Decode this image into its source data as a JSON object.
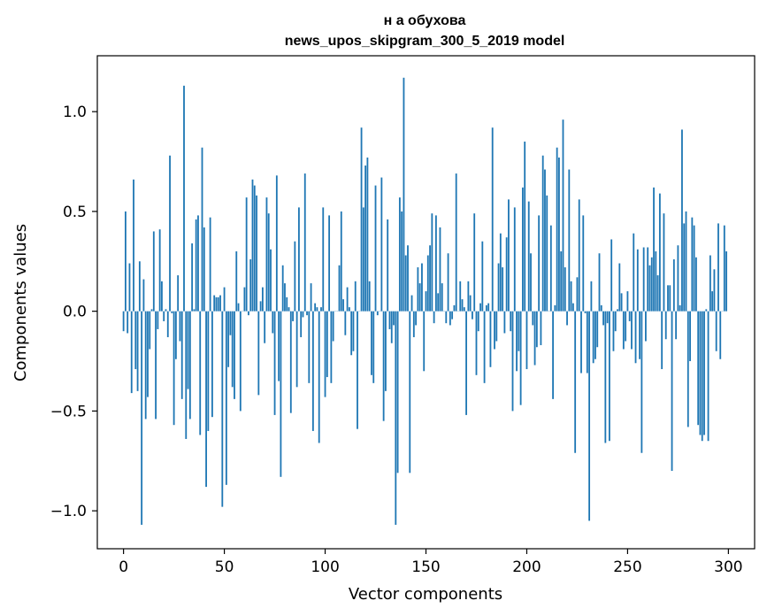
{
  "chart_data": {
    "type": "bar",
    "title": "н а обухова",
    "subtitle": "news_upos_skipgram_300_5_2019 model",
    "xlabel": "Vector components",
    "ylabel": "Components values",
    "xlim": [
      -13,
      313
    ],
    "ylim": [
      -1.19,
      1.28
    ],
    "xticks": [
      0,
      50,
      100,
      150,
      200,
      250,
      300
    ],
    "yticks": [
      -1.0,
      -0.5,
      0.0,
      0.5,
      1.0
    ],
    "ytick_labels": [
      "−1.0",
      "−0.5",
      "0.0",
      "0.5",
      "1.0"
    ],
    "xtick_labels": [
      "0",
      "50",
      "100",
      "150",
      "200",
      "250",
      "300"
    ],
    "bar_color": "#1f77b4",
    "grid": false,
    "x": "component index 0..299",
    "values": [
      -0.1,
      0.5,
      -0.11,
      0.24,
      -0.41,
      0.66,
      -0.29,
      -0.4,
      0.25,
      -1.07,
      0.16,
      -0.54,
      -0.43,
      -0.19,
      0.01,
      0.4,
      -0.54,
      -0.09,
      0.41,
      0.15,
      -0.05,
      0.01,
      -0.13,
      0.78,
      -0.01,
      -0.57,
      -0.24,
      0.18,
      -0.15,
      -0.44,
      1.13,
      -0.64,
      -0.39,
      -0.54,
      0.34,
      0.01,
      0.46,
      0.48,
      -0.62,
      0.82,
      0.42,
      -0.88,
      -0.6,
      0.47,
      -0.53,
      0.08,
      0.07,
      0.07,
      0.08,
      -0.98,
      0.12,
      -0.87,
      -0.28,
      -0.12,
      -0.38,
      -0.44,
      0.3,
      0.04,
      -0.5,
      0.0,
      0.12,
      0.57,
      -0.02,
      0.26,
      0.66,
      0.63,
      0.58,
      -0.42,
      0.05,
      0.12,
      -0.16,
      0.57,
      0.49,
      0.31,
      -0.11,
      -0.52,
      0.68,
      -0.35,
      -0.83,
      0.23,
      0.14,
      0.07,
      0.02,
      -0.51,
      -0.05,
      0.35,
      -0.38,
      0.52,
      -0.13,
      -0.03,
      0.69,
      -0.02,
      -0.36,
      0.14,
      -0.6,
      0.04,
      0.02,
      -0.66,
      0.02,
      0.52,
      -0.43,
      -0.33,
      0.48,
      -0.36,
      -0.15,
      0.0,
      0.0,
      0.23,
      0.5,
      0.06,
      -0.12,
      0.12,
      0.02,
      -0.22,
      -0.2,
      0.15,
      -0.59,
      0.0,
      0.92,
      0.52,
      0.73,
      0.77,
      0.15,
      -0.32,
      -0.36,
      0.63,
      -0.02,
      0.0,
      0.67,
      -0.55,
      -0.4,
      0.46,
      -0.09,
      -0.16,
      -0.07,
      -1.07,
      -0.81,
      0.57,
      0.5,
      1.17,
      0.28,
      0.33,
      -0.81,
      0.08,
      -0.13,
      -0.07,
      0.22,
      0.14,
      0.24,
      -0.3,
      0.1,
      0.28,
      0.33,
      0.49,
      -0.06,
      0.48,
      0.09,
      0.42,
      0.14,
      0.0,
      -0.06,
      0.29,
      -0.07,
      -0.04,
      0.03,
      0.69,
      0.0,
      0.15,
      0.06,
      0.02,
      -0.52,
      0.15,
      0.08,
      -0.04,
      0.49,
      -0.32,
      -0.1,
      0.04,
      0.35,
      -0.36,
      0.03,
      0.04,
      -0.28,
      0.92,
      -0.19,
      -0.15,
      0.24,
      0.39,
      0.22,
      -0.11,
      0.37,
      0.56,
      -0.1,
      -0.5,
      0.52,
      -0.3,
      -0.2,
      -0.47,
      0.62,
      0.85,
      -0.29,
      0.55,
      0.29,
      -0.07,
      -0.27,
      -0.18,
      0.48,
      -0.17,
      0.78,
      0.71,
      0.58,
      0.0,
      0.43,
      -0.44,
      0.03,
      0.82,
      0.77,
      0.3,
      0.96,
      0.22,
      -0.07,
      0.71,
      0.15,
      0.04,
      -0.71,
      0.17,
      0.56,
      -0.31,
      0.48,
      -0.01,
      -0.31,
      -1.05,
      0.15,
      -0.26,
      -0.24,
      -0.18,
      0.29,
      0.03,
      -0.07,
      -0.66,
      -0.06,
      -0.65,
      0.36,
      -0.2,
      -0.1,
      0.01,
      0.24,
      0.09,
      -0.19,
      -0.15,
      0.1,
      -0.05,
      -0.19,
      0.39,
      -0.26,
      0.31,
      -0.24,
      -0.71,
      0.32,
      -0.15,
      0.32,
      0.23,
      0.27,
      0.62,
      0.3,
      0.18,
      0.59,
      -0.29,
      0.49,
      -0.14,
      0.13,
      0.13,
      -0.8,
      0.26,
      -0.14,
      0.33,
      0.03,
      0.91,
      0.44,
      0.5,
      -0.58,
      -0.25,
      0.47,
      0.43,
      0.27,
      -0.57,
      -0.62,
      -0.65,
      -0.62,
      0.01,
      -0.65,
      0.28,
      0.1,
      0.21,
      -0.2,
      0.44,
      -0.24,
      0.0,
      0.43,
      0.3
    ]
  }
}
